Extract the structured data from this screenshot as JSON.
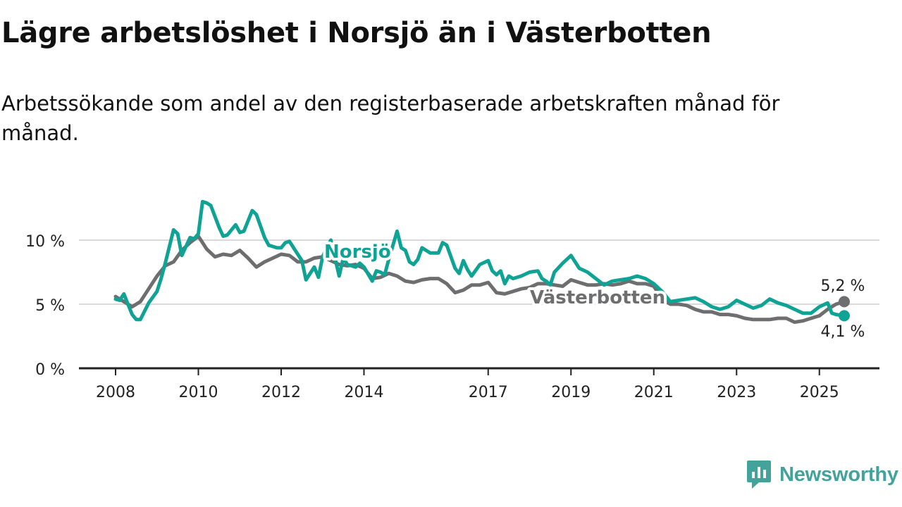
{
  "title": "Lägre arbetslöshet i Norsjö än i Västerbotten",
  "subtitle": "Arbetssökande som andel av den registerbaserade arbetskraften månad för månad.",
  "brand": {
    "name": "Newsworthy",
    "logo_icon": "newsworthy-logo-icon",
    "color": "#43a29a"
  },
  "chart_data": {
    "type": "line",
    "title": "Lägre arbetslöshet i Norsjö än i Västerbotten",
    "subtitle": "Arbetssökande som andel av den registerbaserade arbetskraften månad för månad.",
    "xlabel": "",
    "ylabel": "",
    "xlim": [
      2008.0,
      2026.5
    ],
    "ylim": [
      0,
      12
    ],
    "y_ticks": [
      0,
      5,
      10
    ],
    "y_tick_labels": [
      "0 %",
      "5 %",
      "10 %"
    ],
    "x_ticks": [
      2008,
      2010,
      2012,
      2014,
      2017,
      2019,
      2021,
      2023,
      2025
    ],
    "x_tick_labels": [
      "2008",
      "2010",
      "2012",
      "2014",
      "2017",
      "2019",
      "2021",
      "2023",
      "2025"
    ],
    "grid": true,
    "end_labels": [
      "5,2 %",
      "4,1 %"
    ],
    "series": [
      {
        "name": "Västerbotten",
        "color": "#6e6d70",
        "x": [
          2008.0,
          2008.2,
          2008.4,
          2008.6,
          2008.8,
          2009.0,
          2009.2,
          2009.4,
          2009.6,
          2009.8,
          2010.0,
          2010.2,
          2010.4,
          2010.6,
          2010.8,
          2011.0,
          2011.2,
          2011.4,
          2011.6,
          2011.8,
          2012.0,
          2012.2,
          2012.4,
          2012.6,
          2012.8,
          2013.0,
          2013.2,
          2013.4,
          2013.6,
          2013.8,
          2014.0,
          2014.2,
          2014.4,
          2014.6,
          2014.8,
          2015.0,
          2015.2,
          2015.4,
          2015.6,
          2015.8,
          2016.0,
          2016.2,
          2016.4,
          2016.6,
          2016.8,
          2017.0,
          2017.2,
          2017.4,
          2017.6,
          2017.8,
          2018.0,
          2018.2,
          2018.4,
          2018.6,
          2018.8,
          2019.0,
          2019.2,
          2019.4,
          2019.6,
          2019.8,
          2020.0,
          2020.2,
          2020.4,
          2020.6,
          2020.8,
          2021.0,
          2021.2,
          2021.4,
          2021.6,
          2021.8,
          2022.0,
          2022.2,
          2022.4,
          2022.6,
          2022.8,
          2023.0,
          2023.2,
          2023.4,
          2023.6,
          2023.8,
          2024.0,
          2024.2,
          2024.4,
          2024.6,
          2024.8,
          2025.0,
          2025.2,
          2025.4,
          2025.6
        ],
        "values": [
          5.6,
          5.2,
          4.8,
          5.2,
          6.2,
          7.2,
          8.0,
          8.3,
          9.2,
          9.8,
          10.3,
          9.3,
          8.7,
          8.9,
          8.8,
          9.2,
          8.6,
          7.9,
          8.3,
          8.6,
          8.9,
          8.8,
          8.3,
          8.3,
          8.6,
          8.7,
          8.4,
          8.1,
          8.0,
          8.1,
          7.8,
          7.0,
          7.1,
          7.4,
          7.2,
          6.8,
          6.7,
          6.9,
          7.0,
          7.0,
          6.6,
          5.9,
          6.1,
          6.5,
          6.5,
          6.7,
          5.9,
          5.8,
          6.0,
          6.2,
          6.3,
          6.6,
          6.6,
          6.5,
          6.4,
          6.9,
          6.7,
          6.5,
          6.5,
          6.6,
          6.5,
          6.6,
          6.8,
          6.6,
          6.6,
          6.4,
          5.4,
          5.0,
          5.0,
          4.9,
          4.6,
          4.4,
          4.4,
          4.2,
          4.2,
          4.1,
          3.9,
          3.8,
          3.8,
          3.8,
          3.9,
          3.9,
          3.6,
          3.7,
          3.9,
          4.1,
          4.6,
          5.0,
          5.2
        ]
      },
      {
        "name": "Norsjö",
        "color": "#0fa395",
        "x": [
          2008.0,
          2008.1,
          2008.2,
          2008.3,
          2008.4,
          2008.5,
          2008.6,
          2008.8,
          2009.0,
          2009.1,
          2009.2,
          2009.4,
          2009.5,
          2009.6,
          2009.8,
          2009.9,
          2010.0,
          2010.1,
          2010.2,
          2010.3,
          2010.5,
          2010.6,
          2010.7,
          2010.9,
          2011.0,
          2011.1,
          2011.2,
          2011.3,
          2011.4,
          2011.6,
          2011.7,
          2011.9,
          2012.0,
          2012.1,
          2012.2,
          2012.3,
          2012.5,
          2012.6,
          2012.8,
          2012.9,
          2013.0,
          2013.1,
          2013.2,
          2013.3,
          2013.4,
          2013.5,
          2013.6,
          2013.8,
          2013.9,
          2014.0,
          2014.2,
          2014.3,
          2014.4,
          2014.5,
          2014.6,
          2014.8,
          2014.9,
          2015.0,
          2015.1,
          2015.2,
          2015.3,
          2015.4,
          2015.6,
          2015.8,
          2015.9,
          2016.0,
          2016.2,
          2016.3,
          2016.4,
          2016.5,
          2016.6,
          2016.8,
          2017.0,
          2017.1,
          2017.2,
          2017.3,
          2017.4,
          2017.5,
          2017.6,
          2017.8,
          2018.0,
          2018.2,
          2018.3,
          2018.4,
          2018.5,
          2018.6,
          2018.8,
          2019.0,
          2019.2,
          2019.4,
          2019.6,
          2019.8,
          2020.0,
          2020.2,
          2020.4,
          2020.6,
          2020.8,
          2021.0,
          2021.2,
          2021.4,
          2021.6,
          2021.8,
          2022.0,
          2022.2,
          2022.4,
          2022.6,
          2022.8,
          2023.0,
          2023.2,
          2023.4,
          2023.6,
          2023.8,
          2024.0,
          2024.2,
          2024.4,
          2024.6,
          2024.8,
          2025.0,
          2025.2,
          2025.3,
          2025.4,
          2025.6
        ],
        "values": [
          5.4,
          5.3,
          5.8,
          5.0,
          4.2,
          3.8,
          3.8,
          5.1,
          6.0,
          7.0,
          8.2,
          10.8,
          10.5,
          8.8,
          10.2,
          10.1,
          10.5,
          13.0,
          12.9,
          12.7,
          11.0,
          10.3,
          10.4,
          11.2,
          10.6,
          10.7,
          11.5,
          12.3,
          12.0,
          10.2,
          9.6,
          9.4,
          9.4,
          9.8,
          9.9,
          9.4,
          8.4,
          6.9,
          7.9,
          7.1,
          8.7,
          9.4,
          10.0,
          8.6,
          7.2,
          8.6,
          8.1,
          7.9,
          8.2,
          7.9,
          6.8,
          7.6,
          7.5,
          7.3,
          8.5,
          10.7,
          9.4,
          9.2,
          8.3,
          8.1,
          8.5,
          9.4,
          9.0,
          9.0,
          9.8,
          9.6,
          7.8,
          7.4,
          8.4,
          7.7,
          7.2,
          8.1,
          8.4,
          7.6,
          7.3,
          7.6,
          6.6,
          7.2,
          7.0,
          7.2,
          7.5,
          7.6,
          7.0,
          6.8,
          6.5,
          7.5,
          8.2,
          8.8,
          7.8,
          7.5,
          7.0,
          6.5,
          6.8,
          6.9,
          7.0,
          7.2,
          7.0,
          6.6,
          6.0,
          5.2,
          5.3,
          5.4,
          5.5,
          5.2,
          4.8,
          4.6,
          4.8,
          5.3,
          5.0,
          4.7,
          4.9,
          5.4,
          5.1,
          4.9,
          4.6,
          4.3,
          4.3,
          4.8,
          5.1,
          4.3,
          4.2,
          4.1
        ]
      }
    ]
  }
}
